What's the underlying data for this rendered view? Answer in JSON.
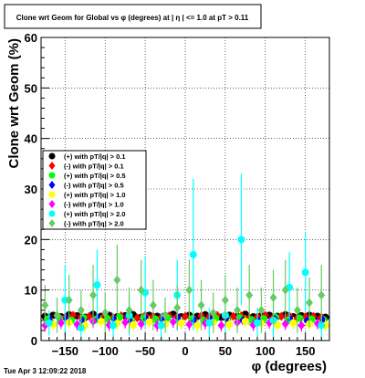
{
  "chart_data": {
    "type": "scatter",
    "title": "Clone wrt Geom for Global vs φ (degrees) at | η | <= 1.0 at pT > 0.11",
    "xlabel": "φ (degrees)",
    "ylabel": "Clone wrt Geom (%)",
    "xlim": [
      -180,
      180
    ],
    "ylim": [
      0,
      60
    ],
    "x_ticks": [
      -150,
      -100,
      -50,
      0,
      50,
      100,
      150
    ],
    "x_tick_labels": [
      "−150",
      "−100",
      "−50",
      "0",
      "50",
      "100",
      "150"
    ],
    "y_ticks": [
      0,
      10,
      20,
      30,
      40,
      50,
      60
    ],
    "y_tick_labels": [
      "0",
      "10",
      "20",
      "30",
      "40",
      "50",
      "60"
    ],
    "grid": true,
    "legend_position": "middle-left",
    "timestamp": "Tue Apr  3 12:09:22 2018",
    "series": [
      {
        "name": "(+) with pT/|q| > 0.1",
        "color": "#000000",
        "x": [
          -175,
          -165,
          -155,
          -145,
          -135,
          -125,
          -115,
          -105,
          -95,
          -85,
          -75,
          -65,
          -55,
          -45,
          -35,
          -25,
          -15,
          -5,
          5,
          15,
          25,
          35,
          45,
          55,
          65,
          75,
          85,
          95,
          105,
          115,
          125,
          135,
          145,
          155,
          165,
          175
        ],
        "y": [
          4.8,
          5.0,
          4.7,
          5.1,
          4.9,
          4.6,
          5.2,
          4.8,
          5.0,
          4.7,
          4.9,
          5.1,
          4.6,
          5.0,
          4.8,
          4.9,
          5.2,
          4.7,
          5.0,
          4.8,
          5.1,
          4.9,
          4.6,
          5.0,
          4.8,
          5.2,
          4.7,
          4.9,
          5.0,
          4.8,
          5.1,
          4.7,
          4.9,
          5.0,
          4.8,
          4.6
        ],
        "yerr": [
          0.4,
          0.4,
          0.4,
          0.4,
          0.4,
          0.4,
          0.4,
          0.4,
          0.4,
          0.4,
          0.4,
          0.4,
          0.4,
          0.4,
          0.4,
          0.4,
          0.4,
          0.4,
          0.4,
          0.4,
          0.4,
          0.4,
          0.4,
          0.4,
          0.4,
          0.4,
          0.4,
          0.4,
          0.4,
          0.4,
          0.4,
          0.4,
          0.4,
          0.4,
          0.4,
          0.4
        ]
      },
      {
        "name": "(-) with pT/|q| > 0.1",
        "color": "#ff0000",
        "x": [
          -170,
          -160,
          -150,
          -140,
          -130,
          -120,
          -110,
          -100,
          -90,
          -80,
          -70,
          -60,
          -50,
          -40,
          -30,
          -20,
          -10,
          0,
          10,
          20,
          30,
          40,
          50,
          60,
          70,
          80,
          90,
          100,
          110,
          120,
          130,
          140,
          150,
          160,
          170
        ],
        "y": [
          4.5,
          4.9,
          4.6,
          5.0,
          4.7,
          4.8,
          4.5,
          5.0,
          4.6,
          4.9,
          4.7,
          4.5,
          5.0,
          4.8,
          4.6,
          4.9,
          4.7,
          4.8,
          4.5,
          4.9,
          4.7,
          5.0,
          4.6,
          4.8,
          4.9,
          4.5,
          4.7,
          5.0,
          4.6,
          4.8,
          4.9,
          4.5,
          4.7,
          4.8,
          4.6
        ],
        "yerr": [
          0.4,
          0.4,
          0.4,
          0.4,
          0.4,
          0.4,
          0.4,
          0.4,
          0.4,
          0.4,
          0.4,
          0.4,
          0.4,
          0.4,
          0.4,
          0.4,
          0.4,
          0.4,
          0.4,
          0.4,
          0.4,
          0.4,
          0.4,
          0.4,
          0.4,
          0.4,
          0.4,
          0.4,
          0.4,
          0.4,
          0.4,
          0.4,
          0.4,
          0.4,
          0.4
        ]
      },
      {
        "name": "(+) with pT/|q| > 0.5",
        "color": "#00ff00",
        "x": [
          -172,
          -157,
          -142,
          -127,
          -112,
          -97,
          -82,
          -67,
          -52,
          -37,
          -22,
          -7,
          8,
          23,
          38,
          53,
          68,
          83,
          98,
          113,
          128,
          143,
          158,
          173
        ],
        "y": [
          4.2,
          4.4,
          4.0,
          4.5,
          4.1,
          4.3,
          4.6,
          4.0,
          4.4,
          4.2,
          4.5,
          4.1,
          4.3,
          4.0,
          4.4,
          4.2,
          4.5,
          4.1,
          4.3,
          4.6,
          4.0,
          4.4,
          4.2,
          4.1
        ],
        "yerr": [
          0.8,
          0.8,
          0.8,
          0.8,
          0.8,
          0.8,
          0.8,
          0.8,
          0.8,
          0.8,
          0.8,
          0.8,
          0.8,
          0.8,
          0.8,
          0.8,
          0.8,
          0.8,
          0.8,
          0.8,
          0.8,
          0.8,
          0.8,
          0.8
        ]
      },
      {
        "name": "(-) with pT/|q| > 0.5",
        "color": "#0000ff",
        "x": [
          -168,
          -148,
          -128,
          -108,
          -88,
          -68,
          -48,
          -28,
          -8,
          12,
          32,
          52,
          72,
          92,
          112,
          132,
          152,
          172
        ],
        "y": [
          4.0,
          4.2,
          3.9,
          4.3,
          4.1,
          3.8,
          4.2,
          4.0,
          4.4,
          3.9,
          4.1,
          4.3,
          4.0,
          3.8,
          4.2,
          4.1,
          3.9,
          4.0
        ],
        "yerr": [
          0.8,
          0.8,
          0.8,
          0.8,
          0.8,
          0.8,
          0.8,
          0.8,
          0.8,
          0.8,
          0.8,
          0.8,
          0.8,
          0.8,
          0.8,
          0.8,
          0.8,
          0.8
        ]
      },
      {
        "name": "(+) with pT/|q| > 1.0",
        "color": "#ffff00",
        "x": [
          -165,
          -145,
          -125,
          -105,
          -85,
          -65,
          -45,
          -25,
          -5,
          15,
          35,
          55,
          75,
          95,
          115,
          135,
          155,
          175
        ],
        "y": [
          3.2,
          3.6,
          3.0,
          3.8,
          3.4,
          3.1,
          3.7,
          3.3,
          3.5,
          3.0,
          3.6,
          3.2,
          3.8,
          3.4,
          3.1,
          3.5,
          3.3,
          3.0
        ],
        "yerr": [
          1.2,
          1.2,
          1.2,
          1.2,
          1.2,
          1.2,
          1.2,
          1.2,
          1.2,
          1.2,
          1.2,
          1.2,
          1.2,
          1.2,
          1.2,
          1.2,
          1.2,
          1.2
        ]
      },
      {
        "name": "(-) with pT/|q| > 1.0",
        "color": "#ff00ff",
        "x": [
          -175,
          -155,
          -135,
          -115,
          -95,
          -75,
          -55,
          -35,
          -15,
          5,
          25,
          45,
          65,
          85,
          105,
          125,
          145,
          165
        ],
        "y": [
          3.0,
          3.5,
          3.2,
          3.8,
          3.1,
          3.6,
          3.3,
          3.0,
          3.7,
          3.2,
          3.4,
          3.0,
          3.6,
          3.1,
          3.5,
          3.3,
          3.0,
          3.4
        ],
        "yerr": [
          1.2,
          1.2,
          1.2,
          1.2,
          1.2,
          1.2,
          1.2,
          1.2,
          1.2,
          1.2,
          1.2,
          1.2,
          1.2,
          1.2,
          1.2,
          1.2,
          1.2,
          1.2
        ]
      },
      {
        "name": "(+) with pT/|q| > 2.0",
        "color": "#00ffff",
        "x": [
          -170,
          -150,
          -130,
          -110,
          -90,
          -70,
          -50,
          -30,
          -10,
          10,
          30,
          50,
          70,
          90,
          110,
          130,
          150,
          170
        ],
        "y": [
          3.5,
          8.0,
          2.5,
          11.0,
          3.0,
          5.0,
          9.5,
          3.0,
          9.0,
          17.0,
          3.5,
          5.0,
          20.0,
          3.5,
          4.0,
          10.5,
          13.5,
          3.0
        ],
        "yerr": [
          2.5,
          7.0,
          2.0,
          7.0,
          2.5,
          4.0,
          7.0,
          2.5,
          7.0,
          15.0,
          3.0,
          4.0,
          13.0,
          3.0,
          3.5,
          7.0,
          8.0,
          2.5
        ]
      },
      {
        "name": "(-) with pT/|q| > 2.0",
        "color": "#66cc66",
        "x": [
          -175,
          -160,
          -145,
          -130,
          -115,
          -100,
          -85,
          -70,
          -55,
          -40,
          -25,
          -10,
          5,
          20,
          35,
          50,
          65,
          80,
          95,
          110,
          125,
          140,
          155,
          170
        ],
        "y": [
          7.0,
          5.0,
          8.0,
          6.0,
          9.0,
          5.5,
          12.0,
          6.0,
          10.0,
          7.0,
          5.0,
          6.5,
          10.0,
          7.0,
          5.5,
          8.0,
          6.0,
          9.0,
          6.0,
          8.5,
          10.0,
          6.0,
          7.5,
          9.0
        ],
        "yerr": [
          4.0,
          3.5,
          5.0,
          4.0,
          6.0,
          4.0,
          7.0,
          4.5,
          6.0,
          5.0,
          3.5,
          4.5,
          6.0,
          5.0,
          4.0,
          5.0,
          4.5,
          6.0,
          4.5,
          5.5,
          6.0,
          4.5,
          5.0,
          6.0
        ]
      }
    ]
  }
}
